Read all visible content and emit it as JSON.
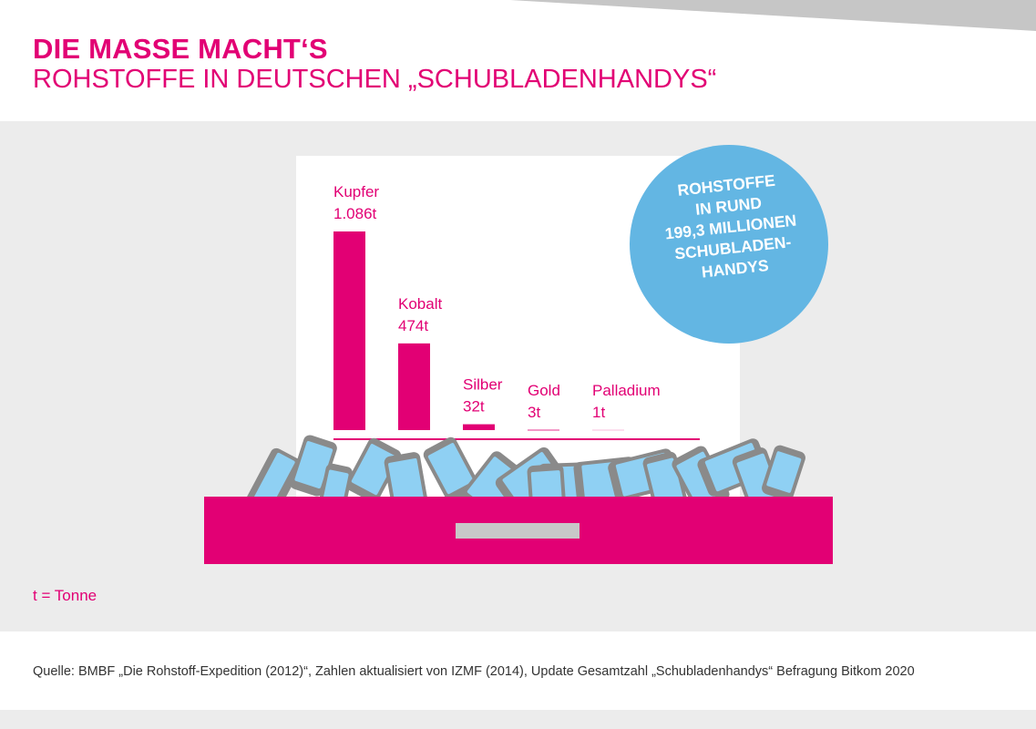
{
  "colors": {
    "accent": "#e20074",
    "panel_bg": "#ececec",
    "badge_bg": "#63b6e3",
    "phone_body": "#8a8a8a",
    "phone_screen": "#8fd0f3",
    "handle": "#c8c8c8",
    "corner_band": "#c6c6c6"
  },
  "header": {
    "title": "DIE MASSE MACHT‘S",
    "subtitle": "ROHSTOFFE IN DEUTSCHEN „SCHUBLADENHANDYS“"
  },
  "badge": {
    "lines": [
      "ROHSTOFFE",
      "IN RUND",
      "199,3 MILLIONEN",
      "SCHUBLADEN-",
      "HANDYS"
    ]
  },
  "chart_data": {
    "type": "bar",
    "categories": [
      "Kupfer",
      "Kobalt",
      "Silber",
      "Gold",
      "Palladium"
    ],
    "values": [
      1086,
      474,
      32,
      3,
      1
    ],
    "value_labels": [
      "1.086t",
      "474t",
      "32t",
      "3t",
      "1t"
    ],
    "title": "",
    "xlabel": "",
    "ylabel": "",
    "ylim": [
      0,
      1086
    ],
    "grid": false,
    "legend": "none"
  },
  "footer": {
    "unit_note": "t = Tonne",
    "source": "Quelle: BMBF „Die Rohstoff-Expedition (2012)“, Zahlen aktualisiert von IZMF (2014), Update Gesamtzahl „Schubladenhandys“ Befragung Bitkom 2020"
  },
  "icons": [
    "mobile-phone-icon",
    "drawer-icon"
  ]
}
